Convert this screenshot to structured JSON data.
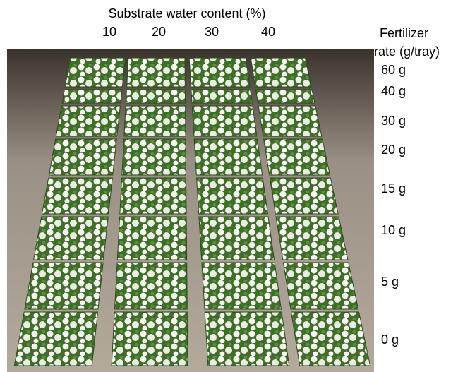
{
  "header": {
    "title": "Substrate water content (%)",
    "columns": [
      "10",
      "20",
      "30",
      "40"
    ]
  },
  "side": {
    "title_line1": "Fertilizer",
    "title_line2": "rate (g/tray)",
    "rows": [
      "60 g",
      "40 g",
      "30 g",
      "20 g",
      "15 g",
      "10 g",
      "5 g",
      "0 g"
    ]
  }
}
